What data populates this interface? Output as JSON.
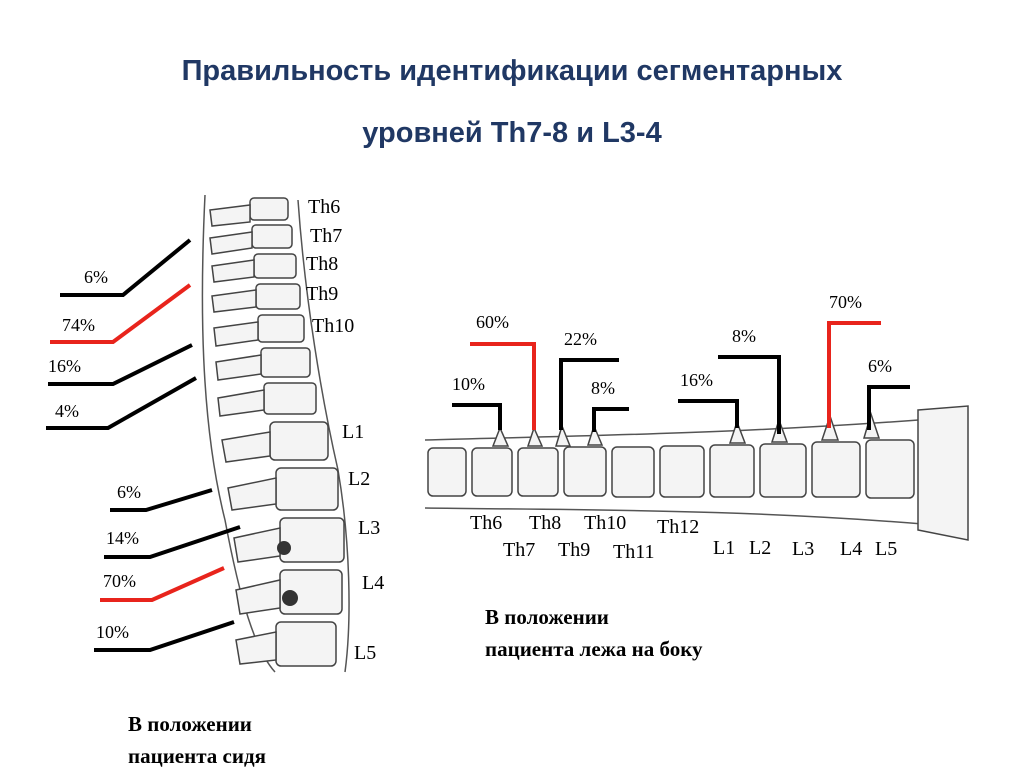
{
  "title": {
    "line1": "Правильность идентификации сегментарных",
    "line2": "уровней Th7-8 и L3-4"
  },
  "sitting": {
    "caption_line1": "В положении",
    "caption_line2": "пациента сидя",
    "vertebra_labels": [
      "Th6",
      "Th7",
      "Th8",
      "Th9",
      "Th10",
      "L1",
      "L2",
      "L3",
      "L4",
      "L5"
    ],
    "thoracic_pointers": [
      {
        "label": "6%",
        "color": "#000000"
      },
      {
        "label": "74%",
        "color": "#e8241c"
      },
      {
        "label": "16%",
        "color": "#000000"
      },
      {
        "label": "4%",
        "color": "#000000"
      }
    ],
    "lumbar_pointers": [
      {
        "label": "6%",
        "color": "#000000"
      },
      {
        "label": "14%",
        "color": "#000000"
      },
      {
        "label": "70%",
        "color": "#e8241c"
      },
      {
        "label": "10%",
        "color": "#000000"
      }
    ]
  },
  "lying": {
    "caption_line1": "В положении",
    "caption_line2": "пациента лежа на боку",
    "vertebra_labels": [
      "Th6",
      "Th7",
      "Th8",
      "Th9",
      "Th10",
      "Th11",
      "Th12",
      "L1",
      "L2",
      "L3",
      "L4",
      "L5"
    ],
    "pointers": [
      {
        "label": "10%",
        "color": "#000000"
      },
      {
        "label": "60%",
        "color": "#e8241c"
      },
      {
        "label": "22%",
        "color": "#000000"
      },
      {
        "label": "8%",
        "color": "#000000"
      },
      {
        "label": "16%",
        "color": "#000000"
      },
      {
        "label": "8%",
        "color": "#000000"
      },
      {
        "label": "70%",
        "color": "#e8241c"
      },
      {
        "label": "6%",
        "color": "#000000"
      }
    ]
  }
}
